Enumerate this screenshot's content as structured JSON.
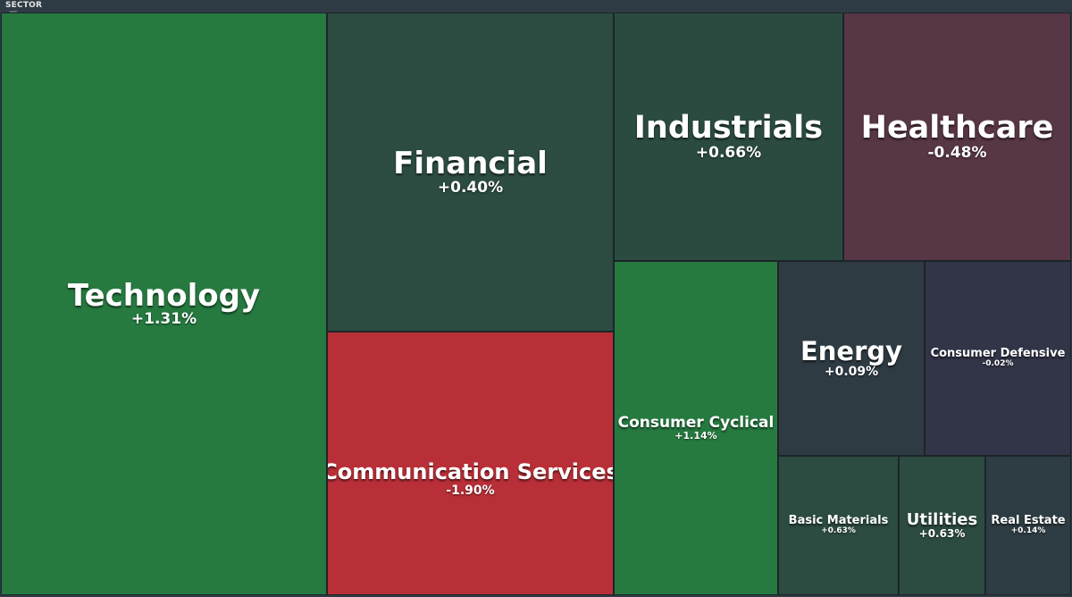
{
  "header": {
    "label": "SECTOR"
  },
  "colors": {
    "strong_green": "#267a40",
    "muted_green": "#2c4c41",
    "neutral": "#2e3b43",
    "red": "#b92f37",
    "muted_red": "#573645",
    "indigo": "#323548"
  },
  "chart_data": {
    "type": "treemap",
    "title": "SECTOR",
    "items": [
      {
        "name": "Technology",
        "change": "+1.31%",
        "value_pct": 1.31,
        "color": "#267a40"
      },
      {
        "name": "Financial",
        "change": "+0.40%",
        "value_pct": 0.4,
        "color": "#2c4c41"
      },
      {
        "name": "Communication Services",
        "change": "-1.90%",
        "value_pct": -1.9,
        "color": "#b92f37"
      },
      {
        "name": "Industrials",
        "change": "+0.66%",
        "value_pct": 0.66,
        "color": "#2b4b41"
      },
      {
        "name": "Healthcare",
        "change": "-0.48%",
        "value_pct": -0.48,
        "color": "#573645"
      },
      {
        "name": "Consumer Cyclical",
        "change": "+1.14%",
        "value_pct": 1.14,
        "color": "#267a40"
      },
      {
        "name": "Energy",
        "change": "+0.09%",
        "value_pct": 0.09,
        "color": "#2e3b43"
      },
      {
        "name": "Consumer Defensive",
        "change": "-0.02%",
        "value_pct": -0.02,
        "color": "#323548"
      },
      {
        "name": "Basic Materials",
        "change": "+0.63%",
        "value_pct": 0.63,
        "color": "#2c4b41"
      },
      {
        "name": "Utilities",
        "change": "+0.63%",
        "value_pct": 0.63,
        "color": "#2c4b41"
      },
      {
        "name": "Real Estate",
        "change": "+0.14%",
        "value_pct": 0.14,
        "color": "#2e3c43"
      }
    ]
  }
}
